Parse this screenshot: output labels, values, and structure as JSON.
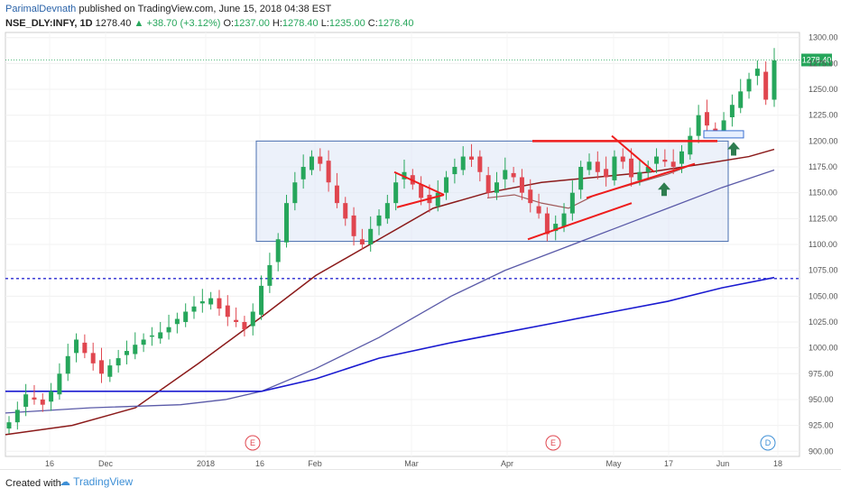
{
  "header": {
    "author": "ParimalDevnath",
    "published": "published on TradingView.com, June 15, 2018 04:38 EST",
    "symbol": "NSE_DLY:INFY, 1D",
    "last": "1278.40",
    "change": "+38.70 (+3.12%)",
    "open_label": "O:",
    "open": "1237.00",
    "high_label": "H:",
    "high": "1278.40",
    "low_label": "L:",
    "low": "1235.00",
    "close_label": "C:",
    "close": "1278.40"
  },
  "footer": {
    "created_with": "Created with",
    "brand": "TradingView"
  },
  "colors": {
    "up": "#26a65b",
    "down": "#e0464f",
    "ma50": "#a05a5a",
    "ma100": "#8b1a1a",
    "ma150": "#5a5aa8",
    "ma200": "#1a1ad0",
    "box": "#dce6f5",
    "hline": "#2a2ad0",
    "trend": "#ee1c1c",
    "arrow": "#2e7d4f"
  },
  "chart_data": {
    "type": "candlestick",
    "ylim": [
      895,
      1305
    ],
    "y_ticks": [
      "1300.00",
      "1275.00",
      "1250.00",
      "1225.00",
      "1200.00",
      "1175.00",
      "1150.00",
      "1125.00",
      "1100.00",
      "1075.00",
      "1050.00",
      "1025.00",
      "1000.00",
      "975.00",
      "950.00",
      "925.00",
      "900.00"
    ],
    "x_ticks": [
      "16",
      "Dec",
      "2018",
      "16",
      "Feb",
      "Mar",
      "Apr",
      "May",
      "17",
      "Jun",
      "18"
    ],
    "last_price_label": "1278.40",
    "horizontal_line": 1067,
    "rectangle": {
      "y_low": 1103,
      "y_high": 1200
    },
    "events": [
      {
        "label": "E"
      },
      {
        "label": "E"
      },
      {
        "label": "D"
      }
    ],
    "candles_close_path": [
      928,
      940,
      955,
      950,
      945,
      958,
      975,
      992,
      1008,
      995,
      985,
      975,
      983,
      990,
      997,
      1003,
      1008,
      1012,
      1015,
      1020,
      1028,
      1035,
      1040,
      1045,
      1048,
      1038,
      1030,
      1025,
      1018,
      1035,
      1060,
      1080,
      1105,
      1140,
      1160,
      1175,
      1185,
      1178,
      1160,
      1140,
      1125,
      1108,
      1100,
      1115,
      1128,
      1140,
      1160,
      1170,
      1158,
      1145,
      1140,
      1150,
      1165,
      1175,
      1185,
      1182,
      1170,
      1150,
      1160,
      1172,
      1165,
      1150,
      1140,
      1130,
      1110,
      1120,
      1130,
      1150,
      1175,
      1180,
      1170,
      1165,
      1185,
      1180,
      1165,
      1170,
      1175,
      1185,
      1180,
      1175,
      1190,
      1205,
      1225,
      1215,
      1210,
      1220,
      1235,
      1248,
      1260,
      1270,
      1240,
      1278
    ]
  }
}
